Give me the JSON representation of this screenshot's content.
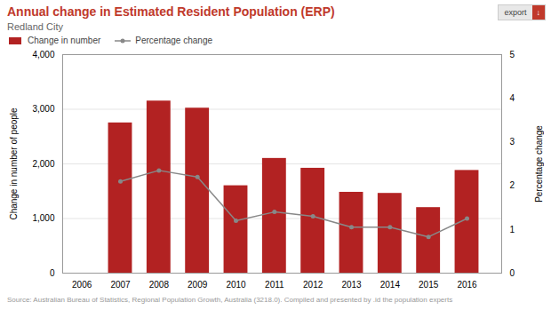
{
  "chart_data": {
    "type": "bar",
    "title": "Annual change in Estimated Resident Population (ERP)",
    "subtitle": "Redland City",
    "source": "Source: Australian Bureau of Statistics, Regional Population Growth, Australia (3218.0). Compiled and presented by .id the population experts",
    "annotations": [
      "export",
      "↓"
    ],
    "x": [
      2007,
      2008,
      2009,
      2010,
      2011,
      2012,
      2013,
      2014,
      2015,
      2016
    ],
    "xlim": [
      2005.5,
      2016.9
    ],
    "xticks": [
      2006,
      2007,
      2008,
      2009,
      2010,
      2011,
      2012,
      2013,
      2014,
      2015,
      2016
    ],
    "ylabel": "Change in number of people",
    "ylim": [
      0,
      4000
    ],
    "yticks": [
      0,
      {
        "value": 1000,
        "label": "1,000"
      },
      {
        "value": 2000,
        "label": "2,000"
      },
      {
        "value": 3000,
        "label": "3,000"
      },
      {
        "value": 4000,
        "label": "4,000"
      }
    ],
    "y2label": "Percentage change",
    "y2lim": [
      0,
      5
    ],
    "y2ticks": [
      0,
      1,
      2,
      3,
      4,
      5
    ],
    "grid": true,
    "legend": "upper left",
    "series": [
      {
        "name": "Change in number",
        "type": "bar",
        "color": "#b22222",
        "values": [
          2750,
          3150,
          3020,
          1600,
          2100,
          1920,
          1480,
          1460,
          1200,
          1880
        ]
      },
      {
        "name": "Percentage change",
        "type": "line",
        "axis": "y2",
        "color": "#888888",
        "marker": "circle",
        "values": [
          2.1,
          2.35,
          2.2,
          1.2,
          1.4,
          1.3,
          1.05,
          1.05,
          0.83,
          1.25
        ]
      }
    ]
  }
}
